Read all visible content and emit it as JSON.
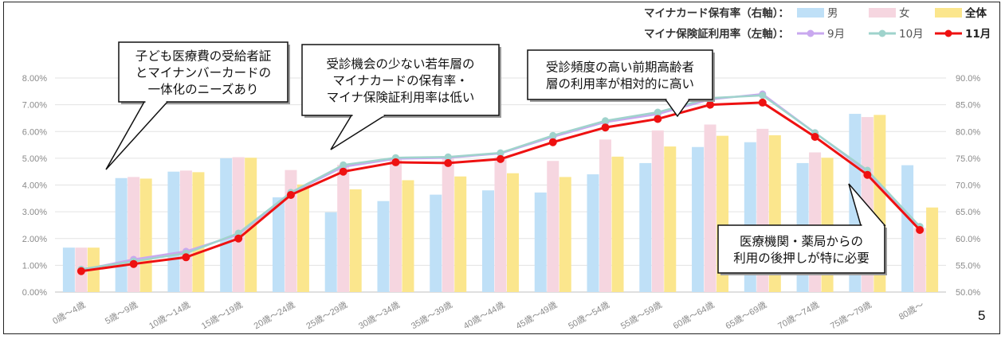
{
  "page_number": "5",
  "legend": {
    "holding_label": "マイナカード保有率（右軸）：",
    "usage_label": "マイナ保険証利用率（左軸）：",
    "holding_items": [
      {
        "label": "男",
        "color": "#bfe0f7"
      },
      {
        "label": "女",
        "color": "#f6d6e0"
      },
      {
        "label": "全体",
        "color": "#fbe68d"
      }
    ],
    "usage_items": [
      {
        "label": "9月",
        "color": "#c9a8ef"
      },
      {
        "label": "10月",
        "color": "#9fd3cc"
      },
      {
        "label": "11月",
        "color": "#ee1111"
      }
    ]
  },
  "callouts": [
    {
      "lines": [
        "子ども医療費の受給者証",
        "とマイナンバーカードの",
        "一体化のニーズあり"
      ]
    },
    {
      "lines": [
        "受診機会の少ない若年層の",
        "マイナカードの保有率・",
        "マイナ保険証利用率は低い"
      ]
    },
    {
      "lines": [
        "受診頻度の高い前期高齢者",
        "層の利用率が相対的に高い"
      ]
    },
    {
      "lines": [
        "医療機関・薬局からの",
        "利用の後押しが特に必要"
      ]
    }
  ],
  "chart_data": {
    "type": "bar",
    "categories": [
      "0歳～4歳",
      "5歳～9歳",
      "10歳～14歳",
      "15歳～19歳",
      "20歳～24歳",
      "25歳～29歳",
      "30歳～34歳",
      "35歳～39歳",
      "40歳～44歳",
      "45歳～49歳",
      "50歳～54歳",
      "55歳～59歳",
      "60歳～64歳",
      "65歳～69歳",
      "70歳～74歳",
      "75歳～79歳",
      "80歳～"
    ],
    "left_axis": {
      "ticks": [
        "0.00%",
        "1.00%",
        "2.00%",
        "3.00%",
        "4.00%",
        "5.00%",
        "6.00%",
        "7.00%",
        "8.00%"
      ],
      "ylim": [
        0,
        8
      ]
    },
    "right_axis": {
      "ticks": [
        "50.0%",
        "55.0%",
        "60.0%",
        "65.0%",
        "70.0%",
        "75.0%",
        "80.0%",
        "85.0%",
        "90.0%"
      ],
      "ylim": [
        50,
        90
      ]
    },
    "bar_series": [
      {
        "name": "男",
        "axis": "right",
        "color": "#bfe0f7",
        "values": [
          58.3,
          71.3,
          72.5,
          75.0,
          67.7,
          64.9,
          67.0,
          68.2,
          69.0,
          68.6,
          72.0,
          74.1,
          77.1,
          78.0,
          74.1,
          83.3,
          73.7
        ]
      },
      {
        "name": "女",
        "axis": "right",
        "color": "#f6d6e0",
        "values": [
          58.3,
          71.5,
          72.7,
          75.2,
          72.8,
          73.8,
          74.9,
          75.0,
          75.3,
          74.5,
          78.5,
          80.2,
          81.3,
          80.5,
          76.1,
          82.7,
          62.0
        ]
      },
      {
        "name": "全体",
        "axis": "right",
        "color": "#fbe68d",
        "values": [
          58.3,
          71.2,
          72.4,
          75.1,
          70.1,
          69.2,
          70.9,
          71.6,
          72.2,
          71.5,
          75.3,
          77.2,
          79.2,
          79.3,
          75.1,
          83.1,
          65.8
        ]
      }
    ],
    "line_series": [
      {
        "name": "9月",
        "axis": "left",
        "color": "#c9a8ef",
        "values": [
          0.82,
          1.22,
          1.52,
          2.15,
          3.7,
          4.68,
          4.98,
          5.02,
          5.18,
          5.8,
          6.35,
          6.65,
          7.2,
          7.4,
          5.95,
          4.5,
          2.42
        ]
      },
      {
        "name": "10月",
        "axis": "left",
        "color": "#9fd3cc",
        "values": [
          0.85,
          1.15,
          1.45,
          2.2,
          3.72,
          4.75,
          5.02,
          5.05,
          5.2,
          5.85,
          6.4,
          6.72,
          7.25,
          7.35,
          5.95,
          4.55,
          2.45
        ]
      },
      {
        "name": "11月",
        "axis": "left",
        "color": "#ee1111",
        "values": [
          0.78,
          1.05,
          1.3,
          2.0,
          3.63,
          4.5,
          4.85,
          4.82,
          4.97,
          5.6,
          6.15,
          6.47,
          7.0,
          7.08,
          5.8,
          4.38,
          2.32
        ]
      }
    ]
  }
}
